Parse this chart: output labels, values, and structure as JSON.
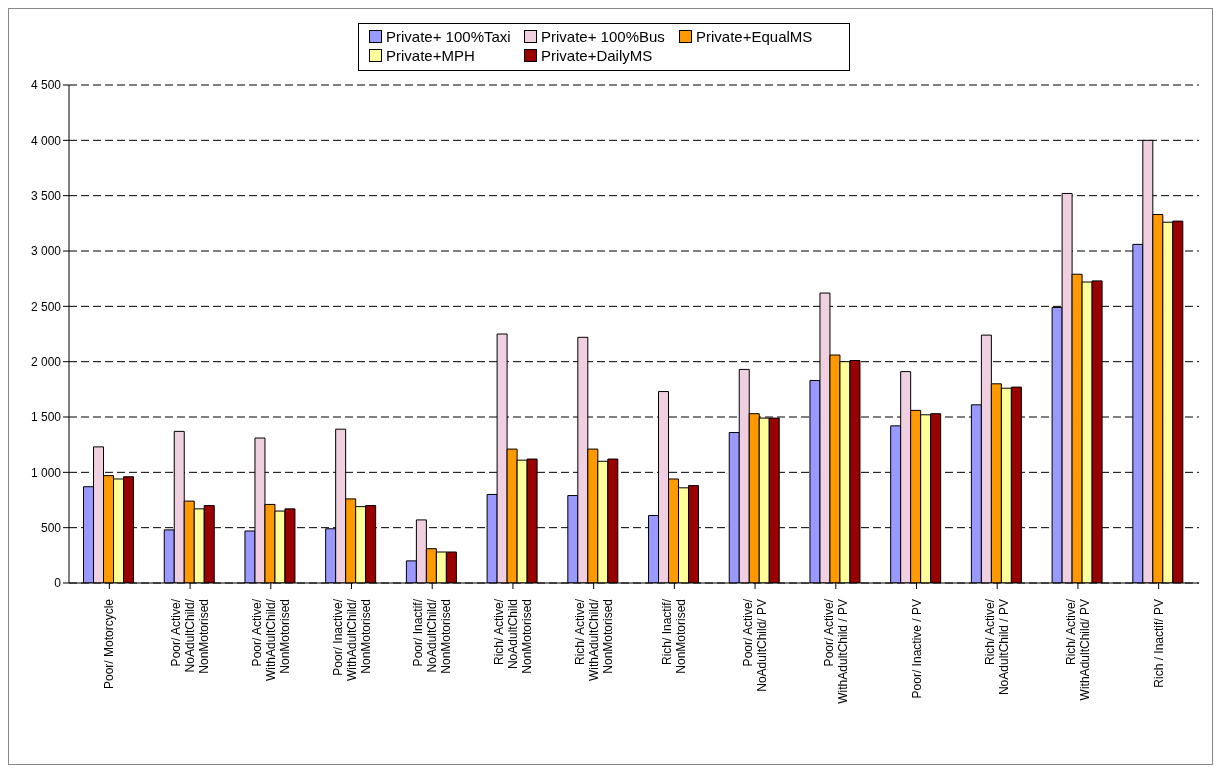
{
  "chart_data": {
    "type": "bar",
    "categories": [
      "Poor/ Motorcycle",
      "Poor/ Active/\nNoAdultChild/\nNonMotorised",
      "Poor/ Active/\nWithAdultChild/\nNonMotorised",
      "Poor/ Inactive/\nWithAdultChild/\nNonMotorised",
      "Poor/ Inactif/\nNoAdultChild/\nNonMotorised",
      "Rich/ Active/\nNoAdultChild\nNonMotorised",
      "Rich/ Active/\nWithAdultChild/\nNonMotorised",
      "Rich/ Inactif/\nNonMotorised",
      "Poor/ Active/\nNoAdultChild/ PV",
      "Poor/ Active/\nWithAdultChild  / PV",
      "Poor/ Inactive / PV",
      "Rich/ Active/\nNoAdultChild / PV",
      "Rich/ Active/\nWithAdultChild/ PV",
      "Rich / Inactif/ PV"
    ],
    "series": [
      {
        "name": "Private+ 100%Taxi",
        "color": "#9999ff",
        "values": [
          870,
          480,
          470,
          490,
          200,
          800,
          790,
          610,
          1360,
          1830,
          1420,
          1610,
          2490,
          3060
        ]
      },
      {
        "name": "Private+ 100%Bus",
        "color": "#f0d0e0",
        "values": [
          1230,
          1370,
          1310,
          1390,
          570,
          2250,
          2220,
          1730,
          1930,
          2620,
          1910,
          2240,
          3520,
          4000
        ]
      },
      {
        "name": "Private+EqualMS",
        "color": "#ff9900",
        "values": [
          970,
          740,
          710,
          760,
          310,
          1210,
          1210,
          940,
          1530,
          2060,
          1560,
          1800,
          2790,
          3330
        ]
      },
      {
        "name": "Private+MPH",
        "color": "#ffff99",
        "values": [
          940,
          670,
          650,
          690,
          280,
          1110,
          1100,
          860,
          1490,
          2000,
          1520,
          1760,
          2720,
          3260
        ]
      },
      {
        "name": "Private+DailyMS",
        "color": "#990000",
        "values": [
          960,
          700,
          670,
          700,
          280,
          1120,
          1120,
          880,
          1490,
          2010,
          1530,
          1770,
          2730,
          3270
        ]
      }
    ],
    "ylim": [
      0,
      4500
    ],
    "yticks": [
      0,
      500,
      {
        "value": 1000,
        "label": "1 000"
      },
      {
        "value": 1500,
        "label": "1 500"
      },
      {
        "value": 2000,
        "label": "2 000"
      },
      {
        "value": 2500,
        "label": "2 500"
      },
      {
        "value": 3000,
        "label": "3 000"
      },
      {
        "value": 3500,
        "label": "3 500"
      },
      {
        "value": 4000,
        "label": "4 000"
      },
      {
        "value": 4500,
        "label": "4 500"
      }
    ],
    "grid": "y",
    "legend": "top"
  }
}
